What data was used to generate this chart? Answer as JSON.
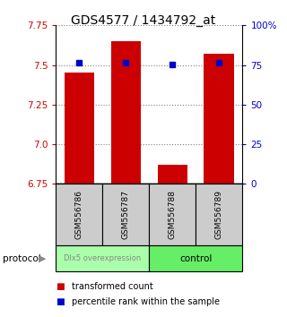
{
  "title": "GDS4577 / 1434792_at",
  "samples": [
    "GSM556786",
    "GSM556787",
    "GSM556788",
    "GSM556789"
  ],
  "bar_values": [
    7.45,
    7.65,
    6.87,
    7.57
  ],
  "percentile_values": [
    7.515,
    7.515,
    7.505,
    7.515
  ],
  "ymin": 6.75,
  "ymax": 7.75,
  "y_ticks_left": [
    6.75,
    7.0,
    7.25,
    7.5,
    7.75
  ],
  "y_ticks_right": [
    0,
    25,
    50,
    75,
    100
  ],
  "bar_color": "#cc0000",
  "percentile_color": "#0000cc",
  "group1_label": "Dlx5 overexpression",
  "group2_label": "control",
  "group1_color": "#aaffaa",
  "group2_color": "#66ee66",
  "group_box_color": "#cccccc",
  "protocol_label": "protocol",
  "legend_red_label": "transformed count",
  "legend_blue_label": "percentile rank within the sample",
  "title_fontsize": 10,
  "tick_fontsize": 7.5,
  "label_fontsize": 7.5
}
